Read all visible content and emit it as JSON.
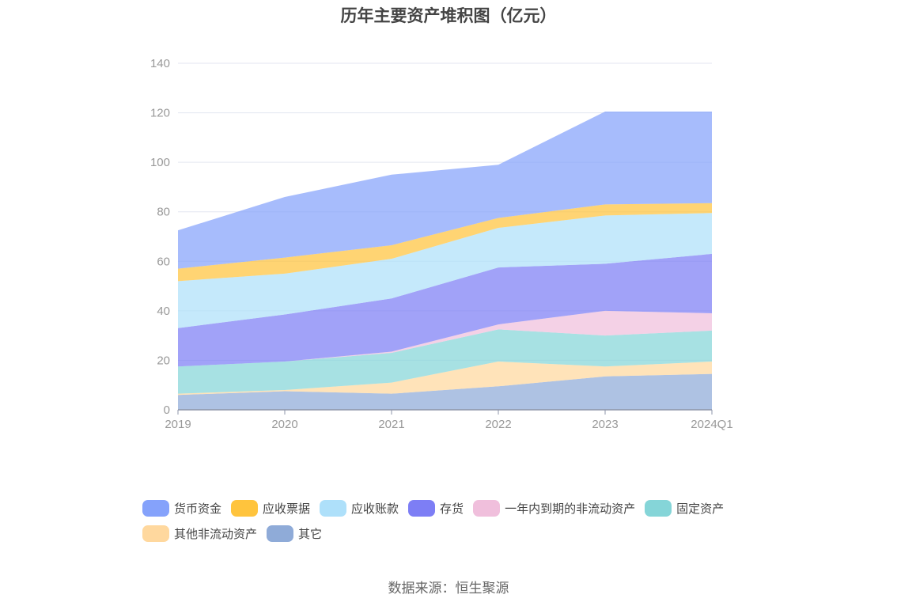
{
  "source_text": "数据来源：恒生聚源",
  "chart_data": {
    "type": "area",
    "title": "历年主要资产堆积图（亿元）",
    "xlabel": "",
    "ylabel": "",
    "stacked": true,
    "ylim": [
      0,
      140
    ],
    "yticks": [
      0,
      20,
      40,
      60,
      80,
      100,
      120,
      140
    ],
    "categories": [
      "2019",
      "2020",
      "2021",
      "2022",
      "2023",
      "2024Q1"
    ],
    "legend_position": "bottom",
    "grid": true,
    "series": [
      {
        "name": "其它",
        "color": "#8fabd8",
        "values": [
          6.0,
          7.5,
          6.5,
          9.5,
          13.5,
          14.5
        ]
      },
      {
        "name": "其他非流动资产",
        "color": "#ffd89e",
        "values": [
          0.5,
          0.5,
          4.5,
          10.0,
          4.0,
          5.0
        ]
      },
      {
        "name": "固定资产",
        "color": "#85d5d8",
        "values": [
          11.0,
          11.5,
          12.0,
          13.0,
          12.5,
          12.5
        ]
      },
      {
        "name": "一年内到期的非流动资产",
        "color": "#f0bfdc",
        "values": [
          0.0,
          0.0,
          0.5,
          2.0,
          10.0,
          7.0
        ]
      },
      {
        "name": "存货",
        "color": "#7d7ef5",
        "values": [
          15.5,
          19.0,
          21.5,
          23.0,
          19.0,
          24.0
        ]
      },
      {
        "name": "应收账款",
        "color": "#aee0fa",
        "values": [
          19.0,
          16.5,
          16.0,
          16.0,
          19.5,
          16.5
        ]
      },
      {
        "name": "应收票据",
        "color": "#ffc43d",
        "values": [
          5.0,
          6.5,
          5.5,
          4.0,
          4.5,
          4.0
        ]
      },
      {
        "name": "货币资金",
        "color": "#85a2fb",
        "values": [
          15.5,
          24.5,
          28.5,
          21.5,
          37.5,
          37.0
        ]
      }
    ]
  },
  "legend": [
    {
      "label": "货币资金",
      "color": "#85a2fb"
    },
    {
      "label": "应收票据",
      "color": "#ffc43d"
    },
    {
      "label": "应收账款",
      "color": "#aee0fa"
    },
    {
      "label": "存货",
      "color": "#7d7ef5"
    },
    {
      "label": "一年内到期的非流动资产",
      "color": "#f0bfdc"
    },
    {
      "label": "固定资产",
      "color": "#85d5d8"
    },
    {
      "label": "其他非流动资产",
      "color": "#ffd89e"
    },
    {
      "label": "其它",
      "color": "#8fabd8"
    }
  ]
}
